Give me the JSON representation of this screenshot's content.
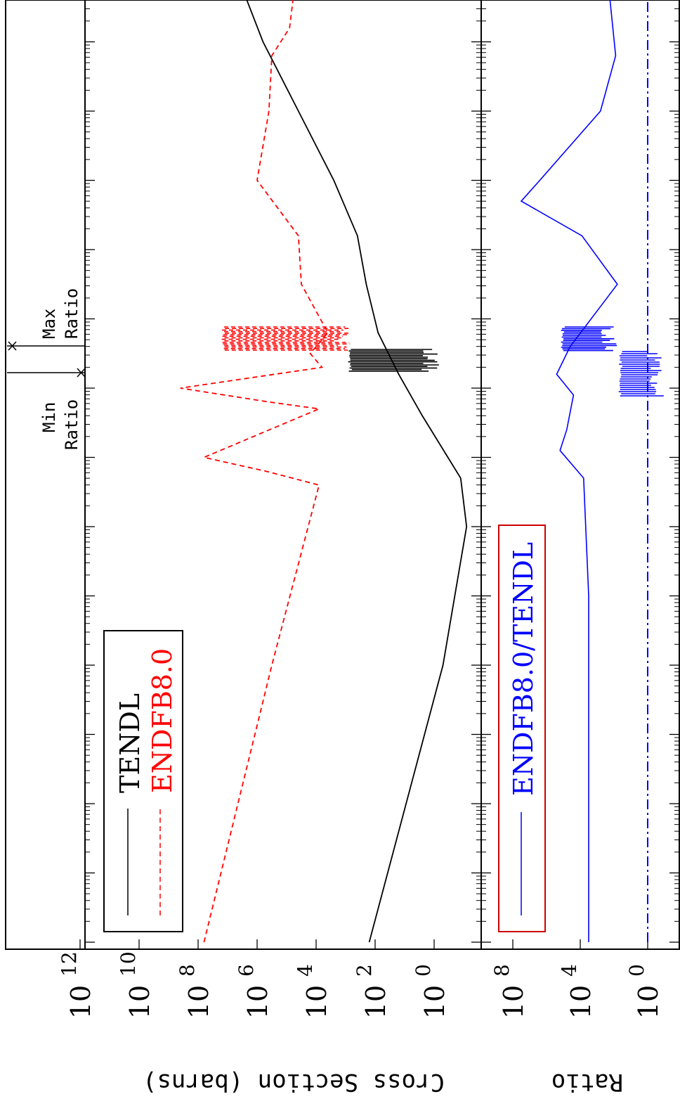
{
  "chart_data": [
    {
      "type": "line",
      "panel": "cross-section",
      "xlabel": "",
      "ylabel": "Cross Section (barns)",
      "ytick_labels": [
        "10^0",
        "10^2",
        "10^4",
        "10^6",
        "10^8",
        "10^10",
        "10^12"
      ],
      "y_scale": "log",
      "ylim_exponent": [
        -1.3,
        13
      ],
      "grid": false,
      "legend_placement": "bottom-left (rotated figure)",
      "series": [
        {
          "name": "TENDL",
          "color": "#000000",
          "style": "solid",
          "points_log": [
            [
              -11.0,
              2.2
            ],
            [
              -7.0,
              -0.3
            ],
            [
              -5.0,
              -1.1
            ],
            [
              -4.3,
              -0.9
            ],
            [
              -3.4,
              0.4
            ],
            [
              -2.8,
              1.2
            ],
            [
              -2.2,
              1.9
            ],
            [
              -1.5,
              2.3
            ],
            [
              -0.8,
              2.6
            ],
            [
              0.0,
              3.4
            ],
            [
              1.0,
              4.6
            ],
            [
              2.0,
              5.8
            ],
            [
              3.1,
              6.8
            ],
            [
              3.6,
              8.0
            ],
            [
              4.0,
              9.2
            ],
            [
              4.55,
              9.6
            ]
          ]
        },
        {
          "name": "ENDFB8.0",
          "color": "#ff0000",
          "style": "dashed",
          "points_log": [
            [
              -11.0,
              7.8
            ],
            [
              -7.0,
              5.5
            ],
            [
              -4.4,
              3.9
            ],
            [
              -4.2,
              5.7
            ],
            [
              -4.0,
              7.8
            ],
            [
              -3.3,
              3.9
            ],
            [
              -3.2,
              5.6
            ],
            [
              -3.0,
              8.6
            ],
            [
              -2.7,
              3.8
            ],
            [
              -2.5,
              4.2
            ],
            [
              -2.2,
              3.6
            ],
            [
              -1.5,
              4.5
            ],
            [
              -0.8,
              4.6
            ],
            [
              0.0,
              6.0
            ],
            [
              1.0,
              5.6
            ],
            [
              1.8,
              5.5
            ],
            [
              2.2,
              4.9
            ],
            [
              2.9,
              4.7
            ],
            [
              3.3,
              5.7
            ],
            [
              3.9,
              6.0
            ],
            [
              4.3,
              5.6
            ]
          ]
        }
      ]
    },
    {
      "type": "line",
      "panel": "ratio",
      "xlabel": "",
      "ylabel": "Ratio",
      "ytick_labels": [
        "10^0",
        "10^4",
        "10^8"
      ],
      "y_scale": "log",
      "ylim_exponent": [
        -2.5,
        10
      ],
      "grid": false,
      "legend_placement": "bottom-left (rotated figure)",
      "series": [
        {
          "name": "ENDFB8.0/TENDL",
          "color": "#0000ff",
          "style": "solid",
          "points_log": [
            [
              -11.0,
              3.5
            ],
            [
              -6.0,
              3.5
            ],
            [
              -4.3,
              3.8
            ],
            [
              -3.9,
              5.2
            ],
            [
              -3.6,
              4.8
            ],
            [
              -3.1,
              4.4
            ],
            [
              -2.8,
              5.4
            ],
            [
              -2.4,
              4.6
            ],
            [
              -1.5,
              1.8
            ],
            [
              -0.8,
              3.9
            ],
            [
              -0.3,
              7.5
            ],
            [
              0.0,
              6.4
            ],
            [
              1.0,
              2.8
            ],
            [
              1.8,
              1.9
            ],
            [
              3.0,
              2.4
            ],
            [
              3.6,
              2.3
            ],
            [
              4.3,
              1.5
            ]
          ]
        },
        {
          "name": "",
          "color": "#0000ff",
          "style": "dash-dot",
          "points_log": [
            [
              -11.0,
              0.0
            ],
            [
              4.55,
              0.0
            ]
          ]
        }
      ]
    }
  ],
  "labels": {
    "axis_title_cross": "Cross Section (barns)",
    "axis_title_ratio": "Ratio",
    "min_ratio": [
      "Min",
      "Ratio"
    ],
    "max_ratio": [
      "Max",
      "Ratio"
    ]
  },
  "legend": {
    "top": [
      "TENDL",
      "ENDFB8.0"
    ],
    "bottom": [
      "ENDFB8.0/TENDL"
    ],
    "bottom_box_color": "#cc0000"
  }
}
